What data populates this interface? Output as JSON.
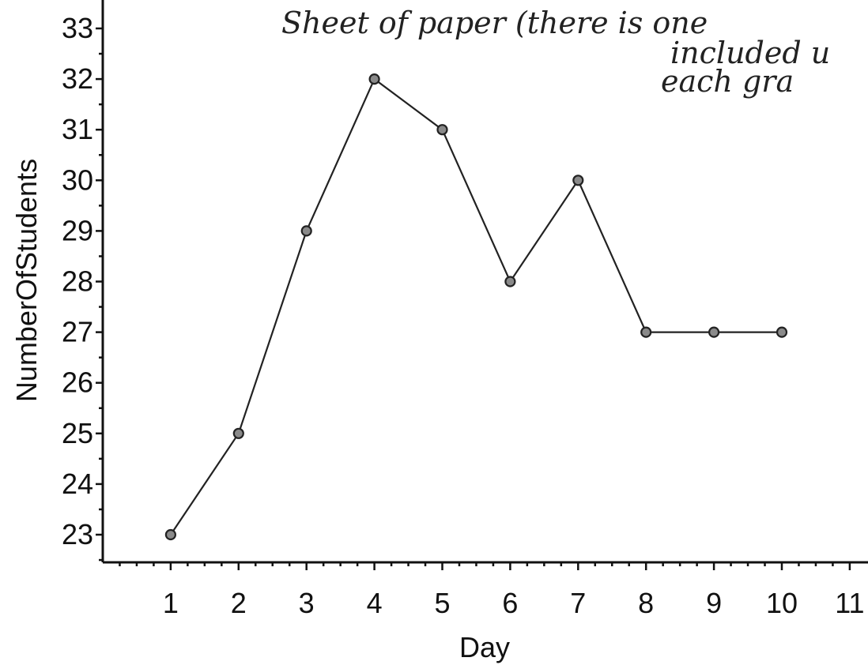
{
  "annotation": {
    "lines": [
      "Sheet of  paper (there  is  one",
      "included  u",
      "each  gra"
    ]
  },
  "chart_data": {
    "type": "line",
    "title": "",
    "xlabel": "Day",
    "ylabel": "NumberOfStudents",
    "xlim": [
      0,
      11
    ],
    "ylim": [
      22.5,
      33.2
    ],
    "x_ticks": [
      1,
      2,
      3,
      4,
      5,
      6,
      7,
      8,
      9,
      10,
      11
    ],
    "y_ticks": [
      23,
      24,
      25,
      26,
      27,
      28,
      29,
      30,
      31,
      32,
      33
    ],
    "grid": false,
    "legend": "none",
    "series": [
      {
        "x": [
          1,
          2,
          3,
          4,
          5,
          6,
          7,
          8,
          9,
          10
        ],
        "y": [
          23,
          25,
          29,
          32,
          31,
          28,
          30,
          27,
          27,
          27
        ]
      }
    ]
  }
}
